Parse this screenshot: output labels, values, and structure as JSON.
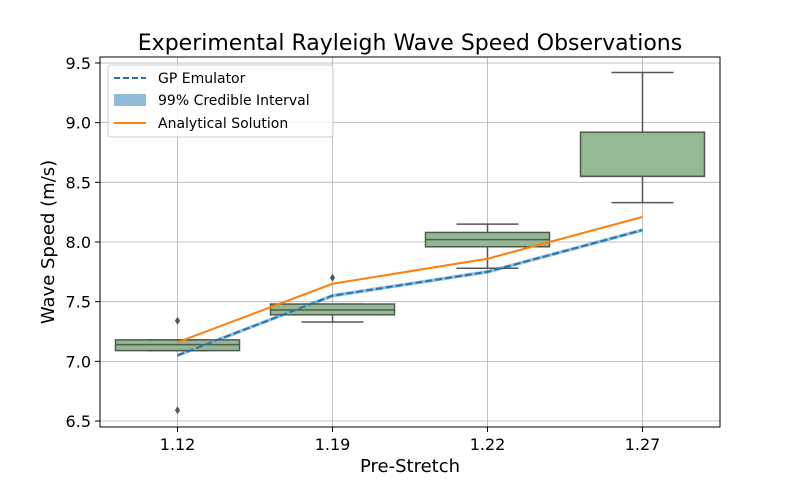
{
  "chart_data": {
    "type": "box",
    "title": "Experimental Rayleigh Wave Speed Observations",
    "xlabel": "Pre-Stretch",
    "ylabel": "Wave Speed (m/s)",
    "ylim": [
      6.45,
      9.55
    ],
    "yticks": [
      6.5,
      7.0,
      7.5,
      8.0,
      8.5,
      9.0,
      9.5
    ],
    "ytick_labels": [
      "6.5",
      "7.0",
      "7.5",
      "8.0",
      "8.5",
      "9.0",
      "9.5"
    ],
    "categories": [
      "1.12",
      "1.19",
      "1.22",
      "1.27"
    ],
    "grid": true,
    "legend_position": "upper-left",
    "boxes": [
      {
        "category": "1.12",
        "whisker_low": 7.09,
        "q1": 7.09,
        "median": 7.14,
        "q3": 7.18,
        "whisker_high": 7.18,
        "outliers": [
          7.34,
          6.59
        ]
      },
      {
        "category": "1.19",
        "whisker_low": 7.33,
        "q1": 7.39,
        "median": 7.43,
        "q3": 7.48,
        "whisker_high": 7.48,
        "outliers": [
          7.7
        ]
      },
      {
        "category": "1.22",
        "whisker_low": 7.78,
        "q1": 7.96,
        "median": 8.02,
        "q3": 8.08,
        "whisker_high": 8.15,
        "outliers": []
      },
      {
        "category": "1.27",
        "whisker_low": 8.33,
        "q1": 8.55,
        "median": 8.55,
        "q3": 8.92,
        "whisker_high": 9.42,
        "outliers": []
      }
    ],
    "series": [
      {
        "name": "GP Emulator",
        "style": "dashed",
        "color": "#1f77b4",
        "values": [
          7.05,
          7.55,
          7.75,
          8.1
        ]
      },
      {
        "name": "Analytical Solution",
        "style": "solid",
        "color": "#ff7f0e",
        "values": [
          7.16,
          7.65,
          7.86,
          8.21
        ]
      }
    ],
    "band": {
      "name": "99% Credible Interval",
      "color": "#1f77b4",
      "lower": [
        7.035,
        7.535,
        7.735,
        8.085
      ],
      "upper": [
        7.065,
        7.565,
        7.765,
        8.115
      ]
    },
    "legend": [
      "GP Emulator",
      "99% Credible Interval",
      "Analytical Solution"
    ],
    "colors": {
      "box_fill": "#93b893",
      "box_edge": "#4f5b4f",
      "whisker": "#555555",
      "grid": "#b0b0b0",
      "outlier": "#555555"
    }
  }
}
